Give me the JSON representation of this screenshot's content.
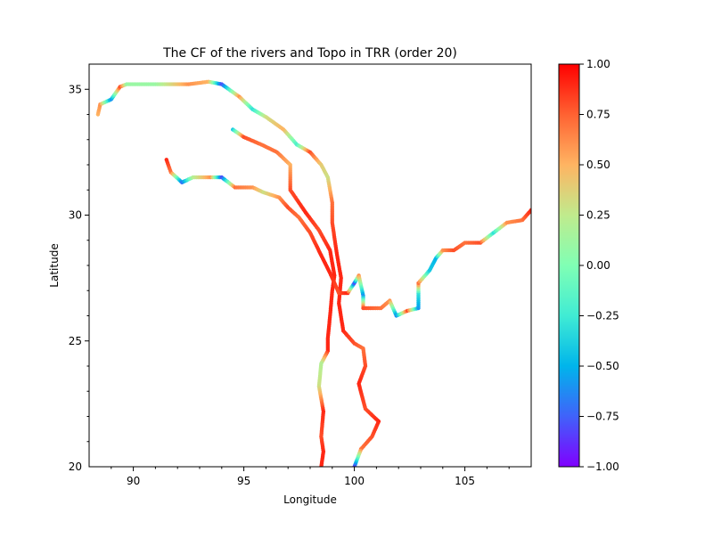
{
  "chart_data": {
    "type": "scatter",
    "title": "The CF of the rivers and Topo in TRR (order 20)",
    "xlabel": "Longitude",
    "ylabel": "Latitude",
    "xlim": [
      88,
      108
    ],
    "ylim": [
      20,
      36
    ],
    "xticks": [
      90,
      95,
      100,
      105
    ],
    "yticks": [
      20,
      25,
      30,
      35
    ],
    "xtick_labels": [
      "90",
      "95",
      "100",
      "105"
    ],
    "ytick_labels": [
      "20",
      "25",
      "30",
      "35"
    ],
    "grid": false,
    "colormap": "rainbow",
    "colorbar": {
      "min": -1.0,
      "max": 1.0,
      "ticks": [
        -1.0,
        -0.75,
        -0.5,
        -0.25,
        0.0,
        0.25,
        0.5,
        0.75,
        1.0
      ],
      "tick_labels": [
        "−1.00",
        "−0.75",
        "−0.50",
        "−0.25",
        "0.00",
        "0.25",
        "0.50",
        "0.75",
        "1.00"
      ]
    },
    "series": [
      {
        "points": [
          [
            88.4,
            34.0,
            0.5
          ],
          [
            88.5,
            34.4,
            0.6
          ],
          [
            89.0,
            34.6,
            -0.6
          ],
          [
            89.4,
            35.1,
            0.8
          ],
          [
            89.7,
            35.2,
            0.1
          ],
          [
            91.0,
            35.2,
            0.1
          ],
          [
            92.5,
            35.2,
            0.6
          ],
          [
            93.4,
            35.3,
            0.5
          ],
          [
            94.0,
            35.2,
            -0.8
          ],
          [
            94.8,
            34.7,
            0.6
          ],
          [
            95.4,
            34.2,
            -0.3
          ],
          [
            96.0,
            33.9,
            0.3
          ],
          [
            96.8,
            33.4,
            0.5
          ],
          [
            97.4,
            32.8,
            -0.2
          ],
          [
            98.0,
            32.5,
            0.8
          ],
          [
            98.5,
            32.0,
            0.4
          ],
          [
            98.8,
            31.5,
            0.3
          ],
          [
            99.0,
            30.5,
            0.7
          ],
          [
            99.0,
            29.7,
            0.8
          ],
          [
            99.2,
            28.5,
            0.9
          ],
          [
            99.4,
            27.5,
            0.9
          ],
          [
            99.3,
            26.5,
            0.9
          ],
          [
            99.5,
            25.4,
            0.9
          ],
          [
            100.0,
            24.9,
            0.8
          ],
          [
            100.4,
            24.7,
            0.7
          ],
          [
            100.5,
            24.0,
            0.8
          ],
          [
            100.2,
            23.3,
            0.9
          ],
          [
            100.5,
            22.3,
            0.8
          ],
          [
            101.1,
            21.8,
            0.9
          ],
          [
            100.8,
            21.2,
            0.8
          ],
          [
            100.3,
            20.7,
            0.7
          ],
          [
            100.0,
            20.0,
            -0.8
          ]
        ]
      },
      {
        "points": [
          [
            94.5,
            33.4,
            -0.4
          ],
          [
            95.0,
            33.1,
            0.8
          ],
          [
            95.8,
            32.8,
            0.7
          ],
          [
            96.5,
            32.5,
            0.7
          ],
          [
            97.1,
            32.0,
            0.5
          ],
          [
            97.1,
            31.0,
            0.8
          ],
          [
            97.8,
            30.1,
            0.9
          ],
          [
            98.4,
            29.4,
            0.8
          ],
          [
            98.9,
            28.6,
            0.9
          ],
          [
            99.1,
            27.6,
            0.9
          ],
          [
            99.0,
            27.0,
            0.9
          ],
          [
            98.9,
            26.0,
            0.9
          ],
          [
            98.8,
            25.1,
            0.9
          ],
          [
            98.8,
            24.6,
            0.9
          ],
          [
            98.5,
            24.1,
            0.2
          ],
          [
            98.4,
            23.2,
            0.3
          ],
          [
            98.6,
            22.2,
            0.9
          ],
          [
            98.5,
            21.2,
            0.8
          ],
          [
            98.6,
            20.6,
            0.9
          ],
          [
            98.5,
            20.0,
            0.9
          ]
        ]
      },
      {
        "points": [
          [
            91.5,
            32.2,
            0.9
          ],
          [
            91.7,
            31.7,
            0.7
          ],
          [
            92.2,
            31.3,
            -0.7
          ],
          [
            92.7,
            31.5,
            0.2
          ],
          [
            93.5,
            31.5,
            0.6
          ],
          [
            94.0,
            31.5,
            -0.8
          ],
          [
            94.6,
            31.1,
            0.7
          ],
          [
            95.4,
            31.1,
            0.6
          ],
          [
            95.9,
            30.9,
            0.3
          ],
          [
            96.6,
            30.7,
            0.6
          ],
          [
            97.0,
            30.3,
            0.8
          ],
          [
            97.5,
            29.9,
            0.7
          ],
          [
            98.0,
            29.3,
            0.8
          ],
          [
            98.5,
            28.4,
            0.9
          ],
          [
            98.9,
            27.7,
            0.9
          ],
          [
            99.3,
            26.9,
            0.8
          ],
          [
            99.7,
            26.9,
            0.9
          ],
          [
            100.0,
            27.3,
            -0.8
          ],
          [
            100.2,
            27.6,
            0.6
          ],
          [
            100.4,
            26.8,
            -0.6
          ],
          [
            100.4,
            26.3,
            0.8
          ],
          [
            101.2,
            26.3,
            0.7
          ],
          [
            101.6,
            26.6,
            0.6
          ],
          [
            101.9,
            26.0,
            -0.6
          ],
          [
            102.4,
            26.2,
            0.8
          ],
          [
            102.9,
            26.3,
            -0.6
          ],
          [
            102.9,
            26.9,
            -0.3
          ],
          [
            102.9,
            27.3,
            0.7
          ],
          [
            103.4,
            27.8,
            -0.4
          ],
          [
            103.7,
            28.3,
            -0.5
          ],
          [
            104.0,
            28.6,
            0.6
          ],
          [
            104.5,
            28.6,
            0.8
          ],
          [
            105.0,
            28.9,
            0.7
          ],
          [
            105.7,
            28.9,
            0.8
          ],
          [
            106.3,
            29.3,
            -0.3
          ],
          [
            106.9,
            29.7,
            0.6
          ],
          [
            107.6,
            29.8,
            0.7
          ],
          [
            108.0,
            30.2,
            0.9
          ]
        ]
      }
    ]
  }
}
